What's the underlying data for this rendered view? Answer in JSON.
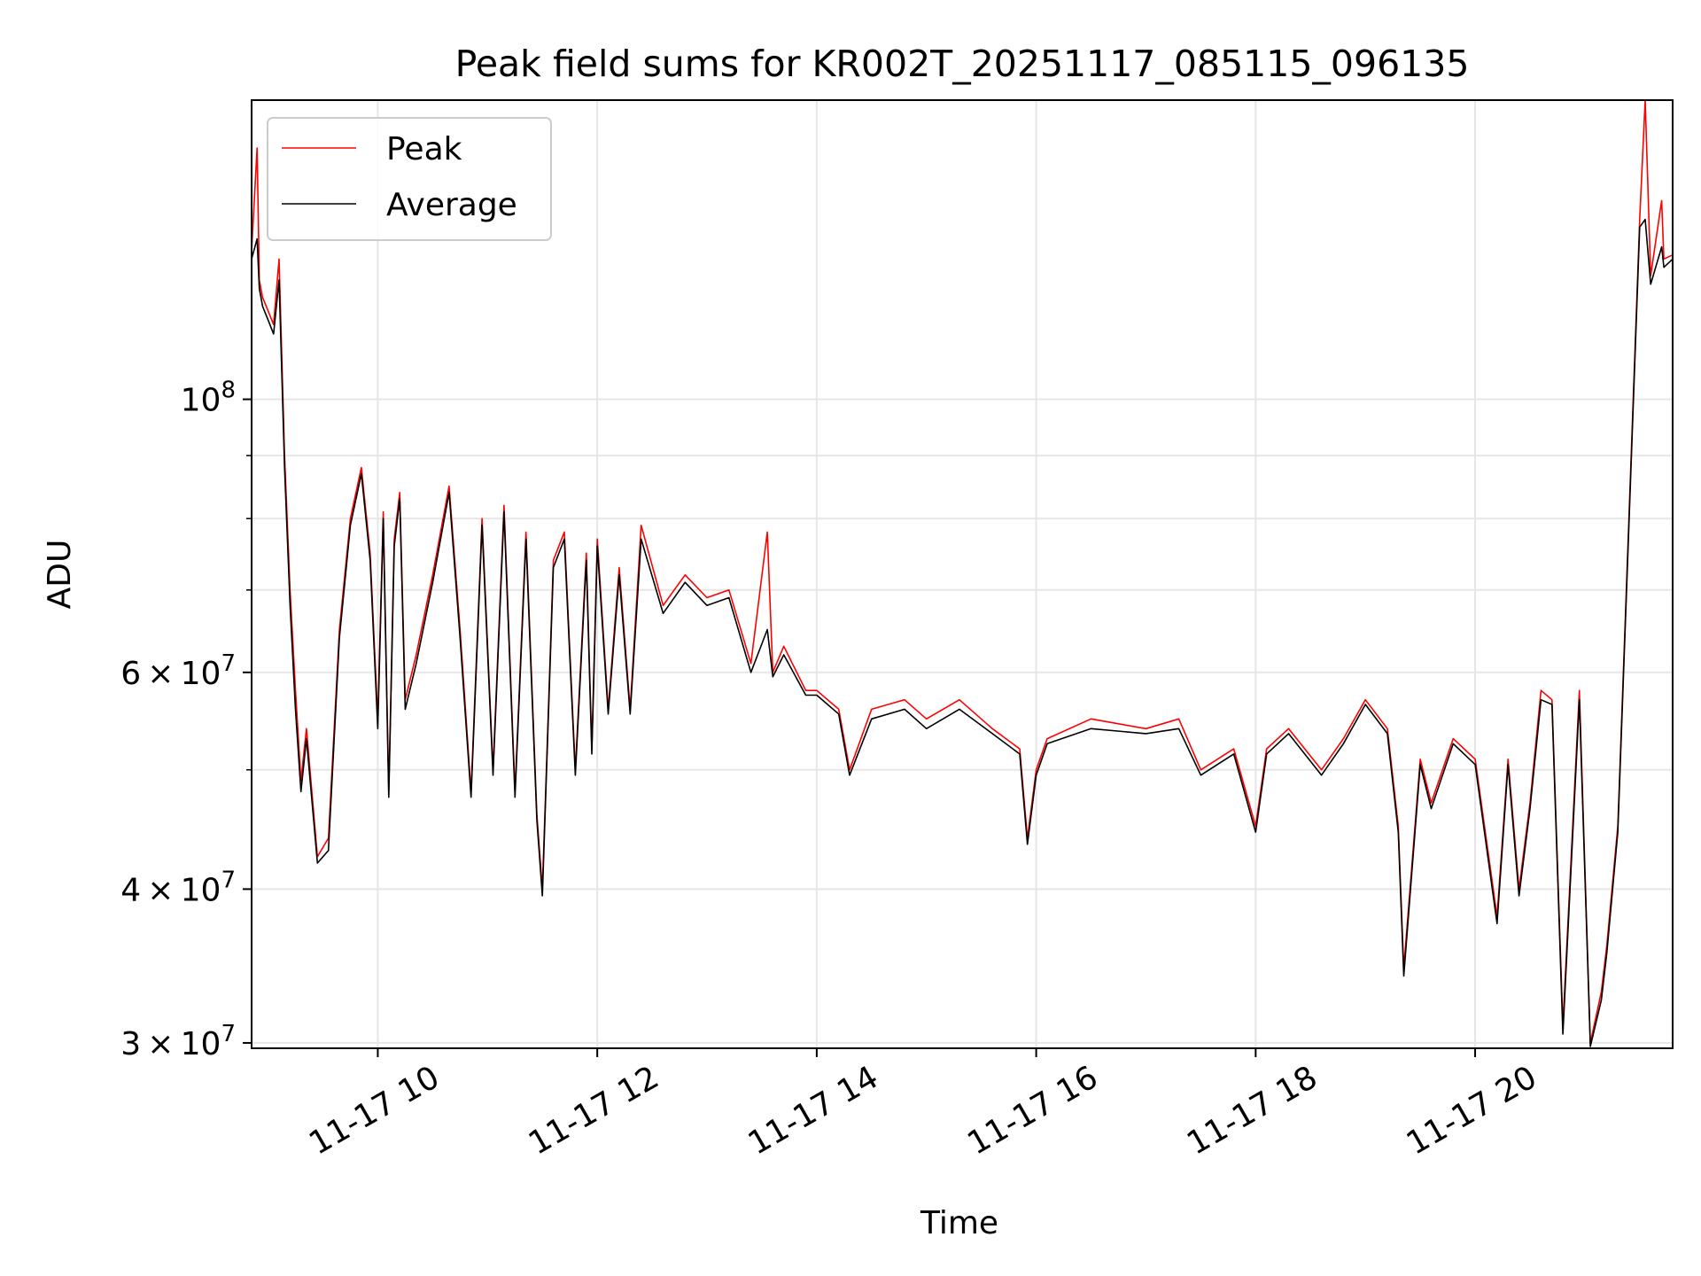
{
  "chart_data": {
    "type": "line",
    "title": "Peak field sums for KR002T_20251117_085115_096135",
    "xlabel": "Time",
    "ylabel": "ADU",
    "y_scale": "log",
    "x_unit": "hours since 2025-11-17 00:00",
    "xlim": [
      8.85,
      21.8
    ],
    "ylim": [
      29700000,
      175000000
    ],
    "grid": true,
    "legend_position": "upper-left",
    "x_ticks": [
      {
        "value": 10,
        "label": "11-17 10"
      },
      {
        "value": 12,
        "label": "11-17 12"
      },
      {
        "value": 14,
        "label": "11-17 14"
      },
      {
        "value": 16,
        "label": "11-17 16"
      },
      {
        "value": 18,
        "label": "11-17 18"
      },
      {
        "value": 20,
        "label": "11-17 20"
      }
    ],
    "y_major_ticks": [
      {
        "value": 30000000,
        "mantissa": "3",
        "times": "×",
        "base": "10",
        "exponent": "7"
      },
      {
        "value": 40000000,
        "mantissa": "4",
        "times": "×",
        "base": "10",
        "exponent": "7"
      },
      {
        "value": 60000000,
        "mantissa": "6",
        "times": "×",
        "base": "10",
        "exponent": "7"
      },
      {
        "value": 100000000,
        "mantissa": "",
        "times": "",
        "base": "10",
        "exponent": "8"
      }
    ],
    "y_minor_ticks": [
      50000000,
      70000000,
      80000000,
      90000000
    ],
    "series": [
      {
        "name": "Peak",
        "color": "#ff0000",
        "x": [
          8.85,
          8.9,
          8.92,
          8.95,
          9.0,
          9.05,
          9.1,
          9.15,
          9.2,
          9.25,
          9.3,
          9.35,
          9.45,
          9.55,
          9.65,
          9.75,
          9.85,
          9.93,
          10.0,
          10.05,
          10.1,
          10.15,
          10.2,
          10.25,
          10.35,
          10.5,
          10.65,
          10.75,
          10.85,
          10.95,
          11.05,
          11.15,
          11.25,
          11.35,
          11.45,
          11.5,
          11.6,
          11.7,
          11.8,
          11.9,
          11.95,
          12.0,
          12.1,
          12.2,
          12.3,
          12.4,
          12.6,
          12.8,
          13.0,
          13.2,
          13.4,
          13.55,
          13.6,
          13.7,
          13.9,
          14.0,
          14.2,
          14.3,
          14.5,
          14.8,
          15.0,
          15.3,
          15.6,
          15.85,
          15.92,
          16.0,
          16.1,
          16.5,
          17.0,
          17.3,
          17.5,
          17.8,
          18.0,
          18.1,
          18.3,
          18.6,
          18.8,
          19.0,
          19.2,
          19.3,
          19.35,
          19.5,
          19.6,
          19.8,
          20.0,
          20.2,
          20.3,
          20.4,
          20.5,
          20.6,
          20.7,
          20.8,
          20.95,
          21.05,
          21.15,
          21.2,
          21.3,
          21.5,
          21.55,
          21.6,
          21.7,
          21.72,
          21.8
        ],
        "y": [
          132000000,
          160000000,
          125000000,
          121000000,
          118000000,
          115000000,
          130000000,
          90000000,
          70000000,
          58000000,
          49000000,
          54000000,
          42500000,
          44000000,
          65000000,
          80000000,
          88000000,
          75000000,
          55000000,
          81000000,
          48000000,
          77000000,
          84000000,
          57000000,
          62000000,
          72000000,
          85000000,
          65000000,
          48000000,
          80000000,
          50000000,
          82000000,
          48000000,
          78000000,
          46000000,
          40000000,
          74000000,
          78000000,
          50000000,
          75000000,
          52000000,
          77000000,
          56000000,
          73000000,
          56000000,
          79000000,
          68000000,
          72000000,
          69000000,
          70000000,
          61000000,
          78000000,
          60000000,
          63000000,
          58000000,
          58000000,
          56000000,
          50000000,
          56000000,
          57000000,
          55000000,
          57000000,
          54000000,
          52000000,
          44000000,
          50000000,
          53000000,
          55000000,
          54000000,
          55000000,
          50000000,
          52000000,
          45000000,
          52000000,
          54000000,
          50000000,
          53000000,
          57000000,
          54000000,
          45000000,
          34500000,
          51000000,
          47000000,
          53000000,
          51000000,
          38000000,
          51000000,
          40000000,
          47000000,
          58000000,
          57000000,
          31000000,
          58000000,
          30000000,
          33000000,
          36000000,
          45000000,
          140000000,
          175000000,
          126000000,
          145000000,
          130000000,
          131000000
        ]
      },
      {
        "name": "Average",
        "color": "#000000",
        "x": [
          8.85,
          8.9,
          8.92,
          8.95,
          9.0,
          9.05,
          9.1,
          9.15,
          9.2,
          9.25,
          9.3,
          9.35,
          9.45,
          9.55,
          9.65,
          9.75,
          9.85,
          9.93,
          10.0,
          10.05,
          10.1,
          10.15,
          10.2,
          10.25,
          10.35,
          10.5,
          10.65,
          10.75,
          10.85,
          10.95,
          11.05,
          11.15,
          11.25,
          11.35,
          11.45,
          11.5,
          11.6,
          11.7,
          11.8,
          11.9,
          11.95,
          12.0,
          12.1,
          12.2,
          12.3,
          12.4,
          12.6,
          12.8,
          13.0,
          13.2,
          13.4,
          13.55,
          13.6,
          13.7,
          13.9,
          14.0,
          14.2,
          14.3,
          14.5,
          14.8,
          15.0,
          15.3,
          15.6,
          15.85,
          15.92,
          16.0,
          16.1,
          16.5,
          17.0,
          17.3,
          17.5,
          17.8,
          18.0,
          18.1,
          18.3,
          18.6,
          18.8,
          19.0,
          19.2,
          19.3,
          19.35,
          19.5,
          19.6,
          19.8,
          20.0,
          20.2,
          20.3,
          20.4,
          20.5,
          20.6,
          20.7,
          20.8,
          20.95,
          21.05,
          21.15,
          21.2,
          21.3,
          21.5,
          21.55,
          21.6,
          21.7,
          21.72,
          21.8
        ],
        "y": [
          130000000,
          135000000,
          123000000,
          119000000,
          116000000,
          113000000,
          125000000,
          88000000,
          68000000,
          56000000,
          48000000,
          53000000,
          42000000,
          43000000,
          64000000,
          79000000,
          87000000,
          74000000,
          54000000,
          80000000,
          47500000,
          76000000,
          83000000,
          56000000,
          61000000,
          71000000,
          84000000,
          64000000,
          47500000,
          79000000,
          49500000,
          81000000,
          47500000,
          77000000,
          45500000,
          39500000,
          73000000,
          77000000,
          49500000,
          74000000,
          51500000,
          76000000,
          55500000,
          72000000,
          55500000,
          77000000,
          67000000,
          71000000,
          68000000,
          69000000,
          60000000,
          65000000,
          59500000,
          62000000,
          57500000,
          57500000,
          55500000,
          49500000,
          55000000,
          56000000,
          54000000,
          56000000,
          53500000,
          51500000,
          43500000,
          49500000,
          52500000,
          54000000,
          53500000,
          54000000,
          49500000,
          51500000,
          44500000,
          51500000,
          53500000,
          49500000,
          52500000,
          56500000,
          53500000,
          44500000,
          34000000,
          50500000,
          46500000,
          52500000,
          50500000,
          37500000,
          50500000,
          39500000,
          46500000,
          57000000,
          56500000,
          30500000,
          57000000,
          29800000,
          32500000,
          35500000,
          44500000,
          138000000,
          140000000,
          124000000,
          133000000,
          128000000,
          130000000
        ]
      }
    ]
  }
}
